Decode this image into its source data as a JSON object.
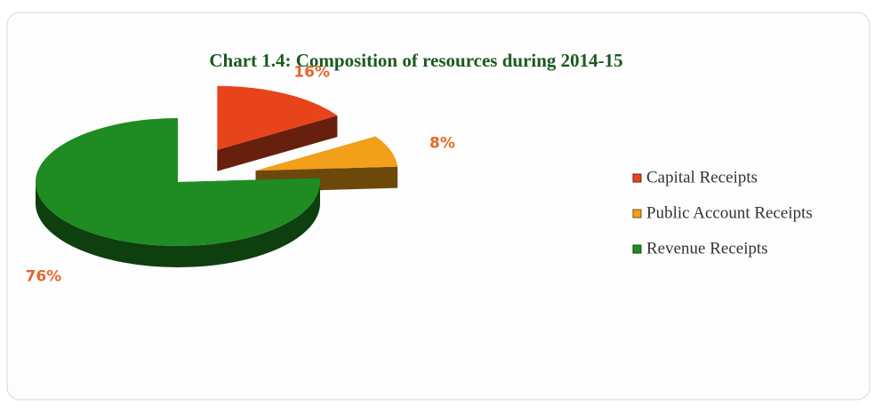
{
  "chart_data": {
    "type": "pie",
    "title": "Chart 1.4: Composition of resources during 2014-15",
    "categories": [
      "Capital Receipts",
      "Public Account Receipts",
      "Revenue Receipts"
    ],
    "values": [
      16,
      8,
      76
    ],
    "value_labels": [
      "16%",
      "8%",
      "76%"
    ],
    "colors": [
      "#e8441c",
      "#f2a019",
      "#1e8c22"
    ],
    "legend": "right"
  }
}
